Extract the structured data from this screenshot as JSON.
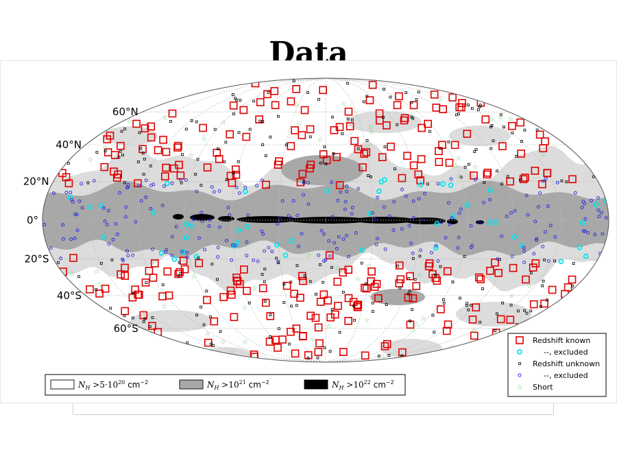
{
  "slide": {
    "title": "Data"
  },
  "chart_data": {
    "type": "scatter",
    "projection": "mollweide (galactic coordinates)",
    "grid": true,
    "lat_ticks": [
      "60°N",
      "40°N",
      "20°N",
      "0°",
      "20°S",
      "40°S",
      "60°S"
    ],
    "lat_tick_values": [
      60,
      40,
      20,
      0,
      -20,
      -40,
      -60
    ],
    "legend_placement": "lower-right",
    "series": [
      {
        "name": "Redshift known",
        "marker": "open-square",
        "color": "#e00000",
        "n_points": 260
      },
      {
        "name": "--, excluded",
        "marker": "open-circle",
        "color": "#00e5ee",
        "n_points": 45
      },
      {
        "name": "Redshift unknown",
        "marker": "small-square",
        "color": "#000000",
        "n_points": 230
      },
      {
        "name": "--, excluded",
        "marker": "small-circle",
        "color": "#2222dd",
        "n_points": 220
      },
      {
        "name": "Short",
        "marker": "star",
        "color": "#66cc66",
        "n_points": 55
      }
    ],
    "column_density_legend": [
      {
        "label": "N_H > 5·10^20 cm^-2",
        "fill": "#ffffff"
      },
      {
        "label": "N_H > 10^21 cm^-2",
        "fill": "#a8a8a8"
      },
      {
        "label": "N_H > 10^22 cm^-2",
        "fill": "#000000"
      }
    ]
  }
}
